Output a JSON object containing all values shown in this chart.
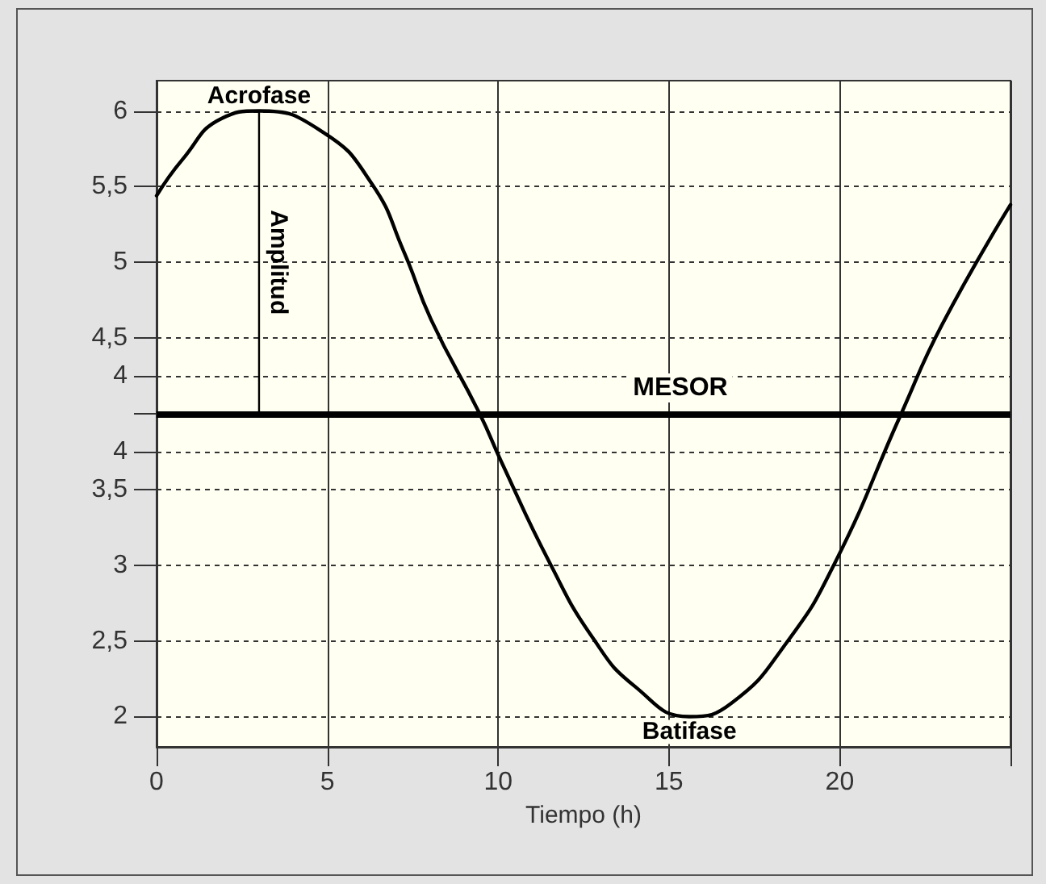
{
  "chart_data": {
    "type": "line",
    "xlabel": "Tiempo (h)",
    "xlim": [
      0,
      25
    ],
    "xticks": [
      0,
      5,
      10,
      15,
      20,
      {
        "value": 25,
        "label": null
      }
    ],
    "ylim": [
      1.8,
      6.2
    ],
    "yticks": [
      {
        "value": 2,
        "label": "2"
      },
      {
        "value": 2.5,
        "label": "2,5"
      },
      {
        "value": 3,
        "label": "3"
      },
      {
        "value": 3.5,
        "label": "3,5"
      },
      {
        "value": 3.75,
        "label": "4"
      },
      {
        "value": 4,
        "label": null
      },
      {
        "value": 4.25,
        "label": "4"
      },
      {
        "value": 4.5,
        "label": "4,5"
      },
      {
        "value": 5,
        "label": "5"
      },
      {
        "value": 5.5,
        "label": "5,5"
      },
      {
        "value": 6,
        "label": "6"
      }
    ],
    "series": [
      {
        "color": "#000000",
        "x": [
          0,
          0.76,
          1.9,
          3,
          4.87,
          6.3,
          7.24,
          8.04,
          9.46,
          10.08,
          11.5,
          12.77,
          14.0,
          15.6,
          16.84,
          18.45,
          19.87,
          21.8,
          23.0,
          25
        ],
        "values": [
          5.44,
          5.68,
          5.95,
          6.0,
          5.86,
          5.52,
          5.07,
          4.62,
          4.0,
          3.69,
          3.02,
          2.52,
          2.2,
          2.0,
          2.09,
          2.49,
          3.02,
          4.0,
          4.59,
          5.38
        ]
      },
      {
        "name": "Amplitud",
        "color": "#000000",
        "x": [
          3,
          3
        ],
        "values": [
          4,
          6
        ]
      }
    ],
    "ref_lines": [
      {
        "axis": "y",
        "value": 4,
        "label": "MESOR",
        "color": "#000000"
      }
    ],
    "annotations": [
      {
        "text": "Acrofase",
        "x": 3,
        "y": 6
      },
      {
        "text": "Batifase",
        "x": 15.6,
        "y": 2
      }
    ],
    "grid": true,
    "legend": false,
    "marker": "none",
    "line_style": "solid"
  }
}
